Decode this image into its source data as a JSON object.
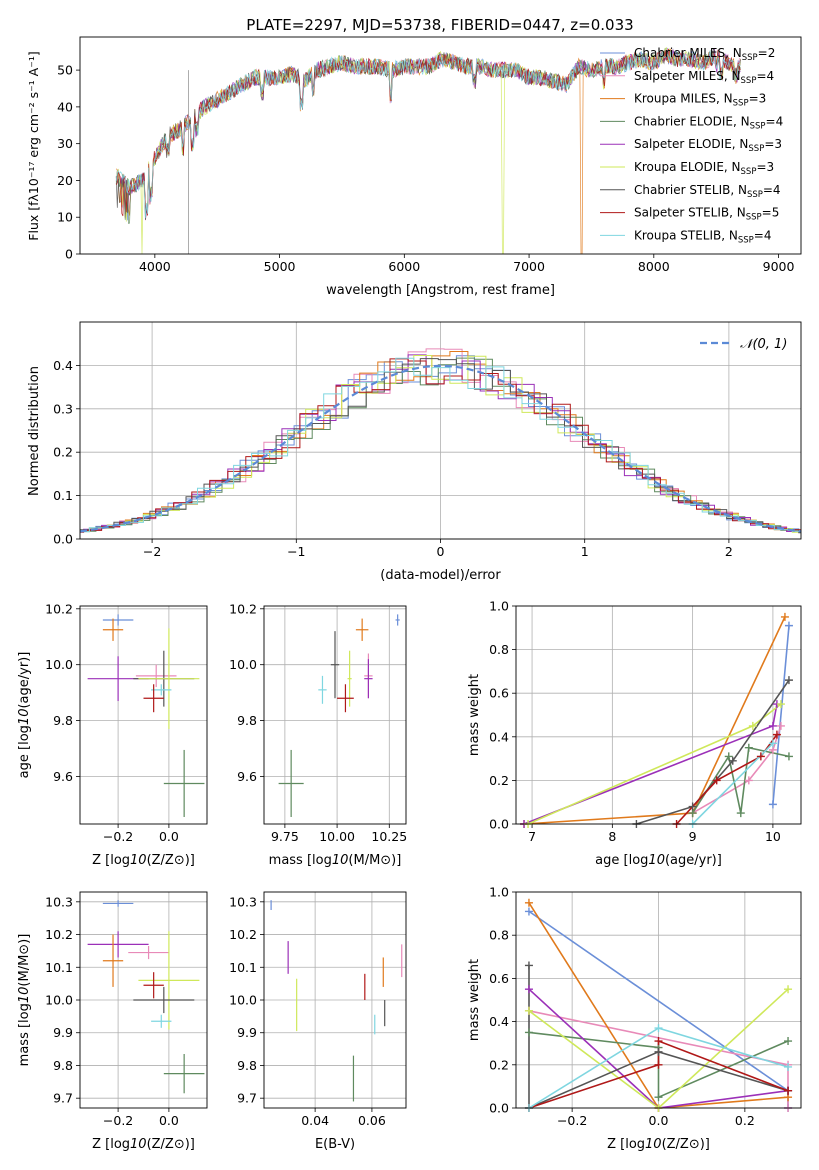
{
  "figure_title": "PLATE=2297, MJD=53738, FIBERID=0447, z=0.033",
  "models": [
    {
      "name": "Chabrier MILES",
      "nssp": "2",
      "color": "#6b8fd8"
    },
    {
      "name": "Salpeter MILES",
      "nssp": "4",
      "color": "#e88ab8"
    },
    {
      "name": "Kroupa MILES",
      "nssp": "3",
      "color": "#e07a1c"
    },
    {
      "name": "Chabrier ELODIE",
      "nssp": "4",
      "color": "#5f8a5f"
    },
    {
      "name": "Salpeter ELODIE",
      "nssp": "3",
      "color": "#9b30b8"
    },
    {
      "name": "Kroupa ELODIE",
      "nssp": "3",
      "color": "#cfe85a"
    },
    {
      "name": "Chabrier STELIB",
      "nssp": "4",
      "color": "#555555"
    },
    {
      "name": "Salpeter STELIB",
      "nssp": "5",
      "color": "#b01818"
    },
    {
      "name": "Kroupa STELIB",
      "nssp": "4",
      "color": "#7fd6e0"
    }
  ],
  "chart_data": [
    {
      "id": "spectrum",
      "type": "line",
      "xlabel": "wavelength [Angstrom, rest frame]",
      "ylabel": "Flux [fλ10⁻¹⁷ erg cm⁻² s⁻¹ A⁻¹]",
      "xlim": [
        3400,
        9180
      ],
      "ylim": [
        0,
        59
      ],
      "xticks": [
        4000,
        5000,
        6000,
        7000,
        8000,
        9000
      ],
      "yticks": [
        0,
        10,
        20,
        30,
        40,
        50
      ],
      "grid": false,
      "legend_position": "top-right",
      "continuum": {
        "x": [
          3700,
          3800,
          3900,
          4000,
          4100,
          4200,
          4300,
          4400,
          4500,
          4600,
          4700,
          4800,
          4900,
          5000,
          5100,
          5200,
          5300,
          5400,
          5500,
          5600,
          5700,
          5800,
          5900,
          6000,
          6100,
          6200,
          6300,
          6400,
          6500,
          6600,
          6700,
          6800,
          6900,
          7000,
          7100,
          7200,
          7300,
          7400,
          7500,
          7600,
          7700,
          7800,
          7900,
          8000,
          8100,
          8200,
          8300,
          8400,
          8500,
          8600,
          8700
        ],
        "y": [
          21,
          18,
          20,
          26,
          32,
          34,
          37,
          40,
          42,
          44,
          46,
          48,
          48,
          48,
          49,
          47,
          50,
          51,
          52,
          51,
          51,
          51,
          50,
          51,
          51,
          51,
          53,
          52,
          51,
          51,
          50,
          50,
          50,
          48,
          48,
          47,
          46,
          51,
          50,
          51,
          51,
          52,
          53,
          52,
          54,
          53,
          53,
          52,
          54,
          52,
          51
        ]
      },
      "series_drops": [
        {
          "model": "Kroupa MILES",
          "x": 7420,
          "y": 0
        },
        {
          "model": "Kroupa ELODIE",
          "x": 6790,
          "y": 0
        },
        {
          "model": "Kroupa ELODIE",
          "x": 3900,
          "y": 0
        }
      ]
    },
    {
      "id": "residuals",
      "type": "step",
      "xlabel": "(data-model)/error",
      "ylabel": "Normed distribution",
      "xlim": [
        -2.5,
        2.5
      ],
      "ylim": [
        0,
        0.5
      ],
      "xticks": [
        -2,
        -1,
        0,
        1,
        2
      ],
      "yticks": [
        0.0,
        0.1,
        0.2,
        0.3,
        0.4
      ],
      "grid": true,
      "legend_position": "top-right",
      "reference_label": "N(0,1)",
      "reference_color": "#5b8ad6"
    },
    {
      "id": "age-vs-z",
      "type": "errorbar",
      "xlabel": "Z [log10(Z/Z⊙)]",
      "ylabel": "age  [log10(age/yr)]",
      "xlim": [
        -0.35,
        0.15
      ],
      "ylim": [
        9.43,
        10.21
      ],
      "xticks": [
        -0.2,
        0.0
      ],
      "yticks": [
        9.6,
        9.8,
        10.0,
        10.2
      ],
      "grid": true,
      "points": [
        {
          "model": "Chabrier MILES",
          "x": -0.2,
          "y": 10.16,
          "xerr": 0.06,
          "yerr": 0.02
        },
        {
          "model": "Kroupa MILES",
          "x": -0.22,
          "y": 10.125,
          "xerr": 0.04,
          "yerr": 0.04
        },
        {
          "model": "Salpeter MILES",
          "x": -0.05,
          "y": 9.96,
          "xerr": 0.08,
          "yerr": 0.04
        },
        {
          "model": "Salpeter ELODIE",
          "x": -0.2,
          "y": 9.95,
          "xerr": 0.12,
          "yerr": 0.08
        },
        {
          "model": "Chabrier STELIB",
          "x": -0.02,
          "y": 9.95,
          "xerr": 0.12,
          "yerr": 0.1
        },
        {
          "model": "Kroupa ELODIE",
          "x": 0.0,
          "y": 9.95,
          "xerr": 0.12,
          "yerr": 0.18
        },
        {
          "model": "Kroupa STELIB",
          "x": -0.03,
          "y": 9.91,
          "xerr": 0.04,
          "yerr": 0.02
        },
        {
          "model": "Salpeter STELIB",
          "x": -0.06,
          "y": 9.88,
          "xerr": 0.04,
          "yerr": 0.05
        },
        {
          "model": "Chabrier ELODIE",
          "x": 0.06,
          "y": 9.575,
          "xerr": 0.08,
          "yerr": 0.12
        }
      ]
    },
    {
      "id": "age-vs-mass",
      "type": "errorbar",
      "xlabel": "mass [log10(M/M⊙)]",
      "ylabel": "",
      "xlim": [
        9.65,
        10.33
      ],
      "ylim": [
        9.43,
        10.21
      ],
      "xticks": [
        9.75,
        10.0,
        10.25
      ],
      "yticks": [
        9.6,
        9.8,
        10.0,
        10.2
      ],
      "grid": true,
      "points": [
        {
          "model": "Chabrier MILES",
          "x": 10.29,
          "y": 10.16,
          "xerr": 0.01,
          "yerr": 0.02
        },
        {
          "model": "Kroupa MILES",
          "x": 10.12,
          "y": 10.125,
          "xerr": 0.03,
          "yerr": 0.04
        },
        {
          "model": "Salpeter MILES",
          "x": 10.15,
          "y": 9.96,
          "xerr": 0.02,
          "yerr": 0.08
        },
        {
          "model": "Salpeter ELODIE",
          "x": 10.15,
          "y": 9.95,
          "xerr": 0.02,
          "yerr": 0.07
        },
        {
          "model": "Chabrier STELIB",
          "x": 9.99,
          "y": 10.0,
          "xerr": 0.02,
          "yerr": 0.12
        },
        {
          "model": "Kroupa ELODIE",
          "x": 10.06,
          "y": 9.95,
          "xerr": 0.01,
          "yerr": 0.1
        },
        {
          "model": "Kroupa STELIB",
          "x": 9.93,
          "y": 9.91,
          "xerr": 0.02,
          "yerr": 0.05
        },
        {
          "model": "Salpeter STELIB",
          "x": 10.04,
          "y": 9.88,
          "xerr": 0.04,
          "yerr": 0.05
        },
        {
          "model": "Chabrier ELODIE",
          "x": 9.78,
          "y": 9.575,
          "xerr": 0.06,
          "yerr": 0.12
        }
      ]
    },
    {
      "id": "weight-vs-age",
      "type": "line",
      "xlabel": "age  [log10(age/yr)]",
      "ylabel": "mass weight",
      "xlim": [
        6.8,
        10.35
      ],
      "ylim": [
        0,
        1.0
      ],
      "xticks": [
        7,
        8,
        9,
        10
      ],
      "yticks": [
        0.0,
        0.2,
        0.4,
        0.6,
        0.8,
        1.0
      ],
      "grid": true,
      "series": [
        {
          "model": "Chabrier MILES",
          "x": [
            10.0,
            10.2
          ],
          "y": [
            0.09,
            0.91
          ]
        },
        {
          "model": "Salpeter MILES",
          "x": [
            9.0,
            9.7,
            10.0,
            10.1
          ],
          "y": [
            0.05,
            0.2,
            0.34,
            0.45
          ]
        },
        {
          "model": "Kroupa MILES",
          "x": [
            6.9,
            9.0,
            10.15
          ],
          "y": [
            0.0,
            0.05,
            0.95
          ]
        },
        {
          "model": "Chabrier ELODIE",
          "x": [
            9.0,
            9.45,
            9.6,
            9.7,
            10.2
          ],
          "y": [
            0.05,
            0.31,
            0.05,
            0.35,
            0.31
          ]
        },
        {
          "model": "Salpeter ELODIE",
          "x": [
            6.9,
            10.0,
            10.05
          ],
          "y": [
            0.0,
            0.45,
            0.55
          ]
        },
        {
          "model": "Kroupa ELODIE",
          "x": [
            6.95,
            9.75,
            10.1
          ],
          "y": [
            0.0,
            0.45,
            0.55
          ]
        },
        {
          "model": "Chabrier STELIB",
          "x": [
            8.3,
            9.0,
            9.5,
            10.2
          ],
          "y": [
            0.0,
            0.08,
            0.29,
            0.66
          ]
        },
        {
          "model": "Salpeter STELIB",
          "x": [
            8.8,
            9.3,
            9.85,
            10.05
          ],
          "y": [
            0.0,
            0.2,
            0.31,
            0.41
          ]
        },
        {
          "model": "Kroupa STELIB",
          "x": [
            9.0,
            10.0
          ],
          "y": [
            0.0,
            0.37
          ]
        }
      ]
    },
    {
      "id": "mass-vs-z",
      "type": "errorbar",
      "xlabel": "Z [log10(Z/Z⊙)]",
      "ylabel": "mass [log10(M/M⊙)]",
      "xlim": [
        -0.35,
        0.15
      ],
      "ylim": [
        9.67,
        10.33
      ],
      "xticks": [
        -0.2,
        0.0
      ],
      "yticks": [
        9.7,
        9.8,
        9.9,
        10.0,
        10.1,
        10.2,
        10.3
      ],
      "grid": true,
      "points": [
        {
          "model": "Chabrier MILES",
          "x": -0.2,
          "y": 10.295,
          "xerr": 0.06,
          "yerr": 0.01
        },
        {
          "model": "Salpeter ELODIE",
          "x": -0.2,
          "y": 10.17,
          "xerr": 0.12,
          "yerr": 0.04
        },
        {
          "model": "Salpeter MILES",
          "x": -0.08,
          "y": 10.145,
          "xerr": 0.08,
          "yerr": 0.02
        },
        {
          "model": "Kroupa MILES",
          "x": -0.22,
          "y": 10.12,
          "xerr": 0.04,
          "yerr": 0.08
        },
        {
          "model": "Kroupa ELODIE",
          "x": 0.0,
          "y": 10.06,
          "xerr": 0.12,
          "yerr": 0.15
        },
        {
          "model": "Salpeter STELIB",
          "x": -0.06,
          "y": 10.045,
          "xerr": 0.04,
          "yerr": 0.04
        },
        {
          "model": "Chabrier STELIB",
          "x": -0.02,
          "y": 10.0,
          "xerr": 0.12,
          "yerr": 0.04
        },
        {
          "model": "Kroupa STELIB",
          "x": -0.03,
          "y": 9.935,
          "xerr": 0.04,
          "yerr": 0.02
        },
        {
          "model": "Chabrier ELODIE",
          "x": 0.06,
          "y": 9.775,
          "xerr": 0.08,
          "yerr": 0.06
        }
      ]
    },
    {
      "id": "mass-vs-ebv",
      "type": "errorbar",
      "xlabel": "E(B-V)",
      "ylabel": "",
      "xlim": [
        0.022,
        0.072
      ],
      "ylim": [
        9.67,
        10.33
      ],
      "xticks": [
        0.04,
        0.06
      ],
      "yticks": [
        9.7,
        9.8,
        9.9,
        10.0,
        10.1,
        10.2,
        10.3
      ],
      "grid": true,
      "points": [
        {
          "model": "Chabrier MILES",
          "x": 0.0245,
          "y": 10.29,
          "xerr": 0,
          "yerr": 0.015
        },
        {
          "model": "Salpeter ELODIE",
          "x": 0.0305,
          "y": 10.13,
          "xerr": 0,
          "yerr": 0.05
        },
        {
          "model": "Salpeter MILES",
          "x": 0.0705,
          "y": 10.12,
          "xerr": 0,
          "yerr": 0.05
        },
        {
          "model": "Kroupa MILES",
          "x": 0.064,
          "y": 10.085,
          "xerr": 0,
          "yerr": 0.045
        },
        {
          "model": "Salpeter STELIB",
          "x": 0.0575,
          "y": 10.04,
          "xerr": 0,
          "yerr": 0.04
        },
        {
          "model": "Chabrier STELIB",
          "x": 0.0645,
          "y": 9.96,
          "xerr": 0,
          "yerr": 0.04
        },
        {
          "model": "Kroupa ELODIE",
          "x": 0.0335,
          "y": 9.985,
          "xerr": 0,
          "yerr": 0.08
        },
        {
          "model": "Kroupa STELIB",
          "x": 0.061,
          "y": 9.925,
          "xerr": 0,
          "yerr": 0.03
        },
        {
          "model": "Chabrier ELODIE",
          "x": 0.0535,
          "y": 9.76,
          "xerr": 0,
          "yerr": 0.07
        }
      ]
    },
    {
      "id": "weight-vs-z",
      "type": "line",
      "xlabel": "Z [log10(Z/Z⊙)]",
      "ylabel": "mass weight",
      "xlim": [
        -0.33,
        0.33
      ],
      "ylim": [
        0,
        1.0
      ],
      "xticks": [
        -0.2,
        0.0,
        0.2
      ],
      "yticks": [
        0.0,
        0.2,
        0.4,
        0.6,
        0.8,
        1.0
      ],
      "grid": true,
      "series": [
        {
          "model": "Chabrier MILES",
          "x": [
            -0.3,
            0.3,
            0.3
          ],
          "y": [
            0.91,
            0.08,
            0.0
          ]
        },
        {
          "model": "Salpeter MILES",
          "x": [
            -0.3,
            0.3,
            0.3
          ],
          "y": [
            0.45,
            0.2,
            0.0
          ]
        },
        {
          "model": "Kroupa MILES",
          "x": [
            -0.3,
            0.0,
            0.3
          ],
          "y": [
            0.95,
            0.0,
            0.05
          ]
        },
        {
          "model": "Chabrier ELODIE",
          "x": [
            -0.3,
            0.0,
            0.0,
            0.3
          ],
          "y": [
            0.35,
            0.28,
            0.05,
            0.31
          ]
        },
        {
          "model": "Salpeter ELODIE",
          "x": [
            -0.3,
            0.0,
            0.3
          ],
          "y": [
            0.55,
            0.0,
            0.08
          ]
        },
        {
          "model": "Kroupa ELODIE",
          "x": [
            -0.3,
            0.0,
            0.3
          ],
          "y": [
            0.45,
            0.0,
            0.55
          ]
        },
        {
          "model": "Chabrier STELIB",
          "x": [
            -0.3,
            -0.3,
            0.0,
            0.3
          ],
          "y": [
            0.66,
            0.0,
            0.26,
            0.08
          ]
        },
        {
          "model": "Salpeter STELIB",
          "x": [
            -0.3,
            0.0,
            0.0,
            0.3
          ],
          "y": [
            0.0,
            0.2,
            0.31,
            0.08
          ]
        },
        {
          "model": "Kroupa STELIB",
          "x": [
            -0.3,
            0.0,
            0.3
          ],
          "y": [
            0.0,
            0.37,
            0.19
          ]
        }
      ]
    }
  ]
}
